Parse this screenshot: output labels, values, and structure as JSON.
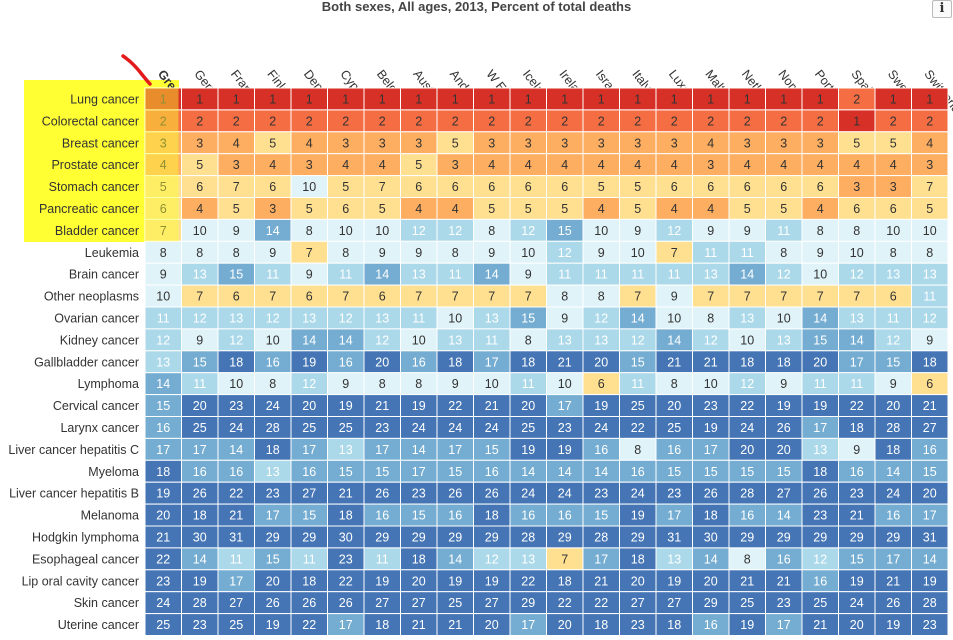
{
  "title": "Both sexes, All ages, 2013, Percent of total deaths",
  "info_icon": "info-icon",
  "chart_data": {
    "type": "heatmap",
    "title": "Both sexes, All ages, 2013, Percent of total deaths",
    "columns": [
      "Greece",
      "Germany",
      "France",
      "Finland",
      "Denmark",
      "Cyprus",
      "Belgium",
      "Austria",
      "Andorra",
      "W Europe",
      "Iceland",
      "Ireland",
      "Israel",
      "Italy",
      "Luxembourg",
      "Malta",
      "Netherlands",
      "Norway",
      "Portugal",
      "Spain",
      "Sweden",
      "Switzerland"
    ],
    "rows": [
      "Lung cancer",
      "Colorectal cancer",
      "Breast cancer",
      "Prostate cancer",
      "Stomach cancer",
      "Pancreatic cancer",
      "Bladder cancer",
      "Leukemia",
      "Brain cancer",
      "Other neoplasms",
      "Ovarian cancer",
      "Kidney cancer",
      "Gallbladder cancer",
      "Lymphoma",
      "Cervical cancer",
      "Larynx cancer",
      "Liver cancer hepatitis C",
      "Myeloma",
      "Liver cancer hepatitis B",
      "Melanoma",
      "Hodgkin lymphoma",
      "Esophageal cancer",
      "Lip oral cavity cancer",
      "Skin cancer",
      "Uterine cancer"
    ],
    "values": [
      [
        1,
        1,
        1,
        1,
        1,
        1,
        1,
        1,
        1,
        1,
        1,
        1,
        1,
        1,
        1,
        1,
        1,
        1,
        1,
        2,
        1,
        1
      ],
      [
        2,
        2,
        2,
        2,
        2,
        2,
        2,
        2,
        2,
        2,
        2,
        2,
        2,
        2,
        2,
        2,
        2,
        2,
        2,
        1,
        2,
        2
      ],
      [
        3,
        3,
        4,
        5,
        4,
        3,
        3,
        3,
        5,
        3,
        3,
        3,
        3,
        3,
        3,
        4,
        3,
        3,
        3,
        5,
        5,
        4
      ],
      [
        4,
        5,
        3,
        4,
        3,
        4,
        4,
        5,
        3,
        4,
        4,
        4,
        4,
        4,
        4,
        3,
        4,
        4,
        4,
        4,
        4,
        3
      ],
      [
        5,
        6,
        7,
        6,
        10,
        5,
        7,
        6,
        6,
        6,
        6,
        6,
        5,
        5,
        6,
        6,
        6,
        6,
        6,
        3,
        3,
        7
      ],
      [
        6,
        4,
        5,
        3,
        5,
        6,
        5,
        4,
        4,
        5,
        5,
        5,
        4,
        5,
        4,
        4,
        5,
        5,
        4,
        6,
        6,
        5
      ],
      [
        7,
        10,
        9,
        14,
        8,
        10,
        10,
        12,
        12,
        8,
        12,
        15,
        10,
        9,
        12,
        9,
        9,
        11,
        8,
        8,
        10,
        10
      ],
      [
        8,
        8,
        8,
        9,
        7,
        8,
        9,
        9,
        8,
        9,
        10,
        12,
        9,
        10,
        7,
        11,
        11,
        8,
        9,
        10,
        8,
        8
      ],
      [
        9,
        13,
        15,
        11,
        9,
        11,
        14,
        13,
        11,
        14,
        9,
        11,
        11,
        11,
        11,
        13,
        14,
        12,
        10,
        12,
        13,
        13
      ],
      [
        10,
        7,
        6,
        7,
        6,
        7,
        6,
        7,
        7,
        7,
        7,
        8,
        8,
        7,
        9,
        7,
        7,
        7,
        7,
        7,
        6,
        11
      ],
      [
        11,
        12,
        13,
        12,
        13,
        12,
        13,
        11,
        10,
        13,
        15,
        9,
        12,
        14,
        10,
        8,
        13,
        10,
        14,
        13,
        11,
        12
      ],
      [
        12,
        9,
        12,
        10,
        14,
        14,
        12,
        10,
        13,
        11,
        8,
        13,
        13,
        12,
        14,
        12,
        10,
        13,
        15,
        14,
        12,
        9
      ],
      [
        13,
        15,
        18,
        16,
        19,
        16,
        20,
        16,
        18,
        17,
        18,
        21,
        20,
        15,
        21,
        21,
        18,
        18,
        20,
        17,
        15,
        18
      ],
      [
        14,
        11,
        10,
        8,
        12,
        9,
        8,
        8,
        9,
        10,
        11,
        10,
        6,
        11,
        8,
        10,
        12,
        9,
        11,
        11,
        9,
        6
      ],
      [
        15,
        20,
        23,
        24,
        20,
        19,
        21,
        19,
        22,
        21,
        20,
        17,
        19,
        25,
        20,
        23,
        22,
        19,
        19,
        22,
        20,
        21
      ],
      [
        16,
        25,
        24,
        28,
        25,
        25,
        23,
        24,
        24,
        24,
        25,
        23,
        24,
        22,
        25,
        19,
        24,
        26,
        17,
        18,
        28,
        27
      ],
      [
        17,
        17,
        14,
        18,
        17,
        13,
        17,
        14,
        17,
        15,
        19,
        19,
        16,
        8,
        16,
        17,
        20,
        20,
        13,
        9,
        18,
        16
      ],
      [
        18,
        16,
        16,
        13,
        16,
        15,
        15,
        17,
        15,
        16,
        14,
        14,
        14,
        16,
        15,
        15,
        15,
        15,
        18,
        16,
        14,
        15
      ],
      [
        19,
        26,
        22,
        23,
        27,
        21,
        26,
        23,
        26,
        26,
        24,
        24,
        23,
        24,
        23,
        26,
        28,
        27,
        26,
        23,
        24,
        20
      ],
      [
        20,
        18,
        21,
        17,
        15,
        18,
        16,
        15,
        16,
        18,
        16,
        16,
        15,
        19,
        17,
        18,
        16,
        14,
        23,
        21,
        16,
        17
      ],
      [
        21,
        30,
        31,
        29,
        29,
        30,
        29,
        29,
        29,
        29,
        28,
        29,
        28,
        29,
        31,
        30,
        29,
        29,
        29,
        29,
        29,
        31
      ],
      [
        22,
        14,
        11,
        15,
        11,
        23,
        11,
        18,
        14,
        12,
        13,
        7,
        17,
        18,
        13,
        14,
        8,
        16,
        12,
        15,
        17,
        14
      ],
      [
        23,
        19,
        17,
        20,
        18,
        22,
        19,
        20,
        19,
        19,
        22,
        18,
        21,
        20,
        19,
        20,
        21,
        21,
        16,
        19,
        21,
        19
      ],
      [
        24,
        28,
        27,
        26,
        26,
        26,
        27,
        27,
        25,
        27,
        29,
        22,
        22,
        27,
        27,
        29,
        25,
        23,
        25,
        24,
        26,
        28
      ],
      [
        25,
        23,
        25,
        19,
        22,
        17,
        18,
        21,
        21,
        20,
        17,
        20,
        18,
        23,
        18,
        16,
        19,
        17,
        21,
        20,
        19,
        23
      ]
    ],
    "highlight": {
      "column": "Greece",
      "rows": [
        "Lung cancer",
        "Colorectal cancer",
        "Breast cancer",
        "Prostate cancer",
        "Stomach cancer",
        "Pancreatic cancer",
        "Bladder cancer"
      ]
    },
    "colors": {
      "rank1": "#d73027",
      "rank2": "#f46d43",
      "rank3_4": "#fdae61",
      "rank5_7": "#fee090",
      "rank8_10": "#e0f3f8",
      "rank11_13": "#abd9e9",
      "rank14_17": "#74add1",
      "rank18plus": "#4575b4",
      "highlight": "#ffff33",
      "annotation": "#e31a1c"
    }
  }
}
